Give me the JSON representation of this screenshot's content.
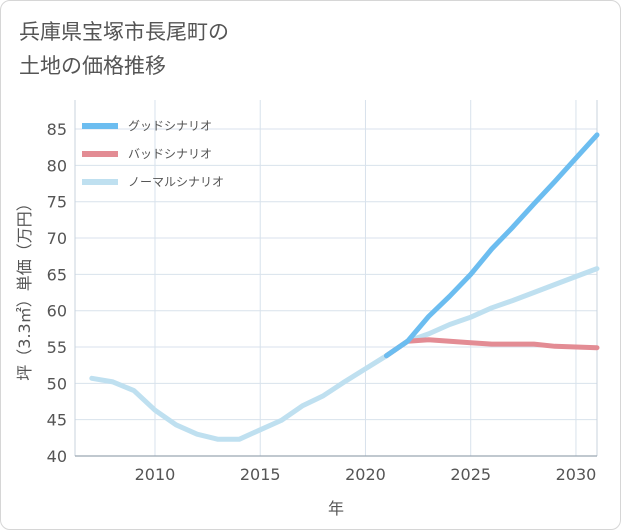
{
  "chart_data": {
    "type": "line",
    "title_line1": "兵庫県宝塚市長尾町の",
    "title_line2": "土地の価格推移",
    "xlabel": "年",
    "ylabel": "坪（3.3㎡）単価（万円）",
    "xlim": [
      2006.2,
      2031
    ],
    "ylim": [
      40,
      89
    ],
    "xticks": [
      2010,
      2015,
      2020,
      2025,
      2030
    ],
    "yticks": [
      40,
      45,
      50,
      55,
      60,
      65,
      70,
      75,
      80,
      85
    ],
    "grid": true,
    "legend_position": "top-left",
    "series": [
      {
        "name": "グッドシナリオ",
        "color": "#6cbdf0",
        "x": [
          2021,
          2022,
          2023,
          2024,
          2025,
          2026,
          2027,
          2028,
          2029,
          2030,
          2031
        ],
        "y": [
          53.8,
          55.8,
          59.2,
          62.0,
          65.0,
          68.5,
          71.5,
          74.7,
          77.8,
          81.0,
          84.2
        ]
      },
      {
        "name": "バッドシナリオ",
        "color": "#e38c94",
        "x": [
          2021,
          2022,
          2023,
          2024,
          2025,
          2026,
          2027,
          2028,
          2029,
          2030,
          2031
        ],
        "y": [
          53.8,
          55.8,
          56.0,
          55.8,
          55.6,
          55.4,
          55.4,
          55.4,
          55.1,
          55.0,
          54.9
        ]
      },
      {
        "name": "ノーマルシナリオ",
        "color": "#bfe0f0",
        "x": [
          2007,
          2008,
          2009,
          2010,
          2011,
          2012,
          2013,
          2014,
          2015,
          2016,
          2017,
          2018,
          2019,
          2020,
          2021,
          2022,
          2023,
          2024,
          2025,
          2026,
          2027,
          2028,
          2029,
          2030,
          2031
        ],
        "y": [
          50.7,
          50.2,
          49.0,
          46.3,
          44.3,
          43.0,
          42.3,
          42.3,
          43.6,
          44.9,
          46.9,
          48.3,
          50.2,
          52.0,
          53.8,
          55.8,
          56.8,
          58.1,
          59.1,
          60.4,
          61.4,
          62.5,
          63.6,
          64.7,
          65.8
        ]
      }
    ]
  }
}
